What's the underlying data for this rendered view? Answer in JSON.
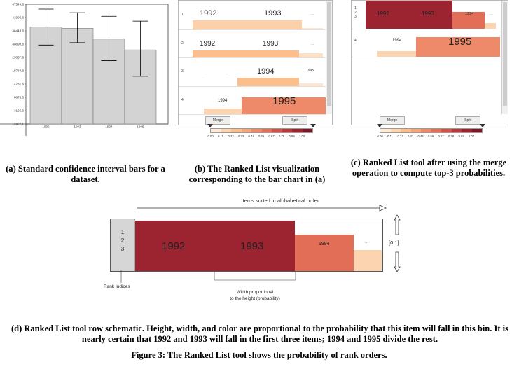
{
  "panel_a": {
    "chart_data": {
      "type": "bar",
      "categories": [
        "1992",
        "1993",
        "1994",
        "1995"
      ],
      "values": [
        38000,
        37500,
        33000,
        28500
      ],
      "error_low": [
        30500,
        31500,
        24000,
        17500
      ],
      "error_high": [
        45500,
        44000,
        42500,
        40500
      ],
      "y_ticks": [
        "47549.6",
        "41996.6",
        "36443.6",
        "30890.6",
        "25337.6",
        "19784.6",
        "14231.6",
        "8678.6",
        "3125.6",
        "-2427.1"
      ],
      "ylim": [
        -2427.1,
        47549.6
      ]
    },
    "caption": "(a) Standard confidence interval bars for a dataset."
  },
  "panel_b": {
    "rows": [
      {
        "rank": "1",
        "items": [
          {
            "label": "1992"
          },
          {
            "label": "1993"
          },
          {
            "label": "..."
          }
        ]
      },
      {
        "rank": "2",
        "items": [
          {
            "label": "1992"
          },
          {
            "label": "1993"
          },
          {
            "label": "..."
          }
        ]
      },
      {
        "rank": "3",
        "items": [
          {
            "label": "..."
          },
          {
            "label": "..."
          },
          {
            "label": "1994"
          },
          {
            "label": "1995"
          }
        ]
      },
      {
        "rank": "4",
        "items": [
          {
            "label": "1994"
          },
          {
            "label": "1995"
          }
        ]
      }
    ],
    "merge_label": "Merge",
    "split_label": "Split",
    "caption": "(b) The Ranked List visualization corresponding to the bar chart in (a)"
  },
  "panel_c": {
    "rows": [
      {
        "rank": "1\n2\n3",
        "items": [
          {
            "label": "1992"
          },
          {
            "label": "1993"
          },
          {
            "label": "1994"
          },
          {
            "label": "..."
          }
        ]
      },
      {
        "rank": "4",
        "items": [
          {
            "label": "1994"
          },
          {
            "label": "1995"
          }
        ]
      }
    ],
    "merge_label": "Merge",
    "split_label": "Split",
    "caption": "(c) Ranked List tool after using the merge operation to compute top-3 probabilities."
  },
  "legend": {
    "ticks": [
      "0.00",
      "0.11",
      "0.22",
      "0.33",
      "0.44",
      "0.56",
      "0.67",
      "0.78",
      "0.89",
      "1.00"
    ],
    "colors": [
      "#fde9d6",
      "#fcd4b0",
      "#fbbf8d",
      "#f5a57b",
      "#ee8a6a",
      "#e26e58",
      "#d1524a",
      "#b9383c",
      "#9c2430",
      "#7a1525"
    ]
  },
  "panel_d": {
    "top_arrow_label": "Items sorted in alphabetical order",
    "rank_indices": [
      "1",
      "2",
      "3"
    ],
    "items": [
      {
        "label": "1992"
      },
      {
        "label": "1993"
      },
      {
        "label": "1994"
      },
      {
        "label": "..."
      }
    ],
    "range_label": "[0,1]",
    "rank_indices_label": "Rank Indices",
    "width_note_1": "Width proportional",
    "width_note_2": "to the height (probability)",
    "caption": "(d) Ranked List tool row schematic. Height, width, and color are proportional to the probability that this item will fall in this bin. It is nearly certain that 1992 and 1993 will fall in the first three items; 1994 and 1995 divide the rest."
  },
  "figure_caption": "Figure 3: The Ranked List tool shows the probability of rank orders."
}
